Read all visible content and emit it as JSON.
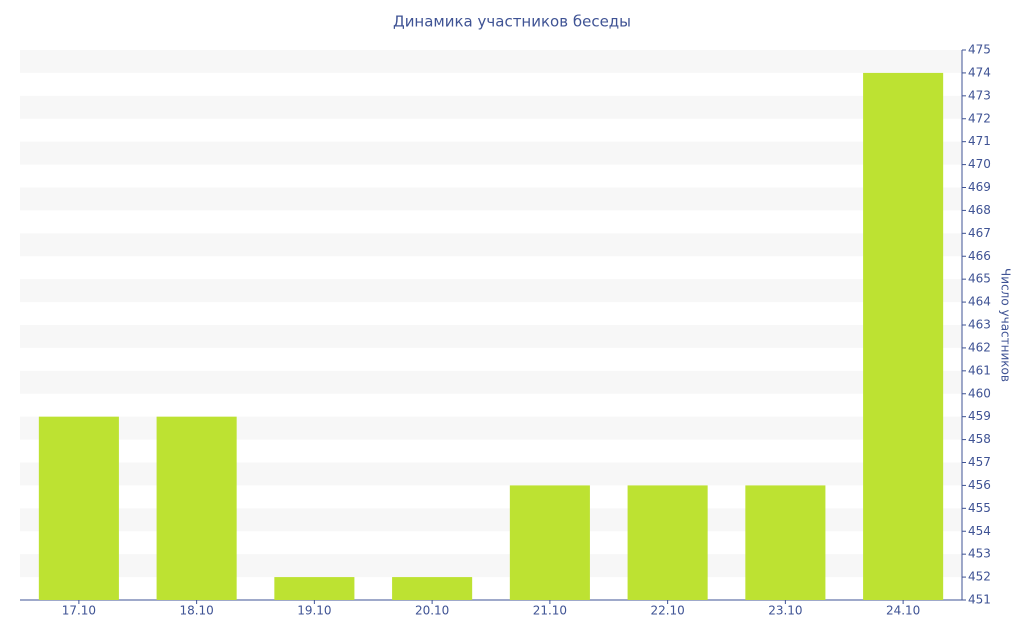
{
  "chart_data": {
    "type": "bar",
    "title": "Динамика участников беседы",
    "y_label": "Число участников",
    "categories": [
      "17.10",
      "18.10",
      "19.10",
      "20.10",
      "21.10",
      "22.10",
      "23.10",
      "24.10"
    ],
    "values": [
      459,
      459,
      452,
      452,
      456,
      456,
      456,
      474
    ],
    "color": "#bde232",
    "ylim": [
      451,
      475
    ],
    "yticks": [
      451,
      452,
      453,
      454,
      455,
      456,
      457,
      458,
      459,
      460,
      461,
      462,
      463,
      464,
      465,
      466,
      467,
      468,
      469,
      470,
      471,
      472,
      473,
      474,
      475
    ],
    "grid": true,
    "y_axis_side": "right"
  }
}
